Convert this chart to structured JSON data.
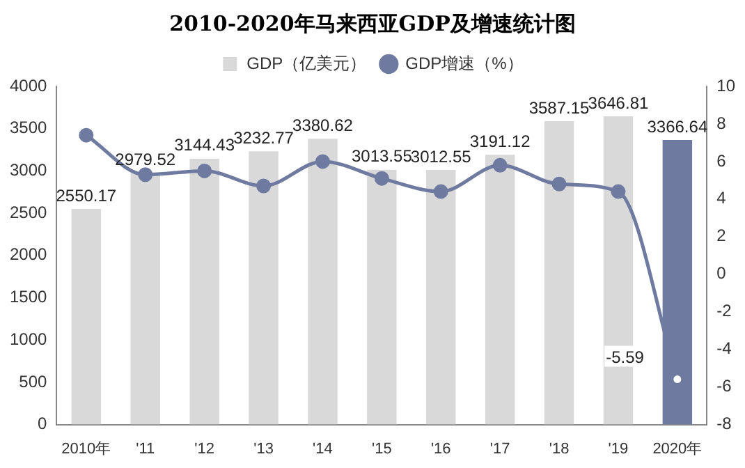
{
  "chart_data": {
    "type": "bar",
    "title": "2010-2020年马来西亚GDP及增速统计图",
    "categories": [
      "2010年",
      "'11",
      "'12",
      "'13",
      "'14",
      "'15",
      "'16",
      "'17",
      "'18",
      "'19",
      "2020年"
    ],
    "series": [
      {
        "name": "GDP（亿美元）",
        "colors": [
          "#d9d9d9",
          "#d9d9d9",
          "#d9d9d9",
          "#d9d9d9",
          "#d9d9d9",
          "#d9d9d9",
          "#d9d9d9",
          "#d9d9d9",
          "#d9d9d9",
          "#d9d9d9",
          "#6f7aa0"
        ],
        "color": "#d9d9d9",
        "values": [
          2550.17,
          2979.52,
          3144.43,
          3232.77,
          3380.62,
          3013.55,
          3012.55,
          3191.12,
          3587.15,
          3646.81,
          3366.64
        ],
        "value_labels": [
          "2550.17",
          "2979.52",
          "3144.43",
          "3232.77",
          "3380.62",
          "3013.55",
          "3012.55",
          "3191.12",
          "3587.15",
          "3646.81",
          "3366.64"
        ]
      },
      {
        "name": "GDP增速（%）",
        "type": "line",
        "axis": "y2",
        "color": "#6f7aa0",
        "values": [
          7.4,
          5.3,
          5.5,
          4.7,
          6.0,
          5.1,
          4.4,
          5.8,
          4.8,
          4.4,
          -5.59
        ],
        "value_labels": [
          null,
          null,
          null,
          null,
          null,
          null,
          null,
          null,
          null,
          null,
          "-5.59"
        ]
      }
    ],
    "ylim": [
      0,
      4000
    ],
    "yticks": [
      0,
      500,
      1000,
      1500,
      2000,
      2500,
      3000,
      3500,
      4000
    ],
    "y2lim": [
      -8,
      10
    ],
    "y2ticks": [
      -8,
      -6,
      -4,
      -2,
      0,
      2,
      4,
      6,
      8,
      10
    ],
    "grid": false,
    "legend": "top",
    "marker": "circle",
    "line_style": "solid"
  }
}
